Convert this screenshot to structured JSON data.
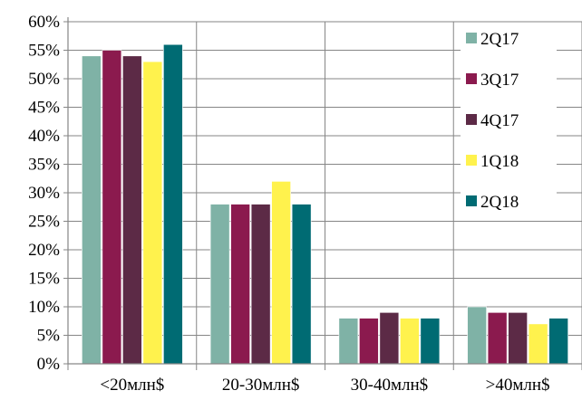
{
  "chart_data": {
    "type": "bar",
    "title": "",
    "xlabel": "",
    "ylabel": "",
    "categories": [
      "<20млн$",
      "20-30млн$",
      "30-40млн$",
      ">40млн$"
    ],
    "ylim": [
      0,
      60
    ],
    "y_ticks": [
      "0%",
      "5%",
      "10%",
      "15%",
      "20%",
      "25%",
      "30%",
      "35%",
      "40%",
      "45%",
      "50%",
      "55%",
      "60%"
    ],
    "grid": true,
    "legend_position": "right",
    "series": [
      {
        "name": "2Q17",
        "color": "#7fb2a6",
        "values": [
          54,
          28,
          8,
          10
        ]
      },
      {
        "name": "3Q17",
        "color": "#8b1a4e",
        "values": [
          55,
          28,
          8,
          9
        ]
      },
      {
        "name": "4Q17",
        "color": "#5c2a46",
        "values": [
          54,
          28,
          9,
          9
        ]
      },
      {
        "name": "1Q18",
        "color": "#fff24d",
        "values": [
          53,
          32,
          8,
          7
        ]
      },
      {
        "name": "2Q18",
        "color": "#006b73",
        "values": [
          56,
          28,
          8,
          8
        ]
      }
    ]
  }
}
